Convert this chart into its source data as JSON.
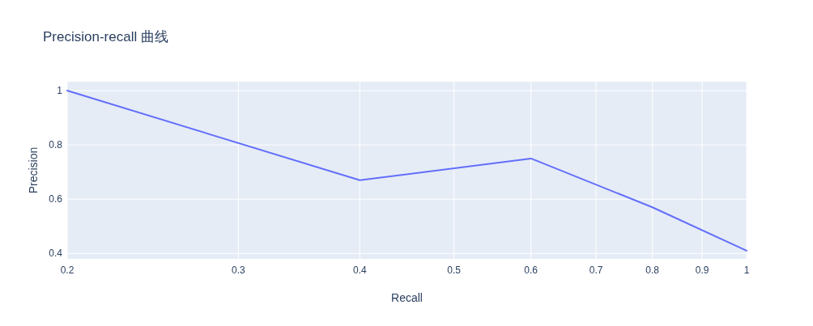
{
  "chart_data": {
    "type": "line",
    "title": "Precision-recall 曲线",
    "xlabel": "Recall",
    "ylabel": "Precision",
    "x": [
      0.2,
      0.4,
      0.6,
      0.8,
      1
    ],
    "series": [
      {
        "color": "#636efa",
        "values": [
          1,
          0.67,
          0.75,
          0.57,
          0.41
        ]
      }
    ],
    "xlim": [
      0.2,
      1
    ],
    "xticks": [
      0.2,
      0.3,
      0.4,
      0.5,
      0.6,
      0.7,
      0.8,
      0.9,
      1
    ],
    "ylim": [
      0.38,
      1.033
    ],
    "yticks": [
      0.4,
      0.6,
      0.8,
      1
    ],
    "log": "x",
    "grid": true
  }
}
